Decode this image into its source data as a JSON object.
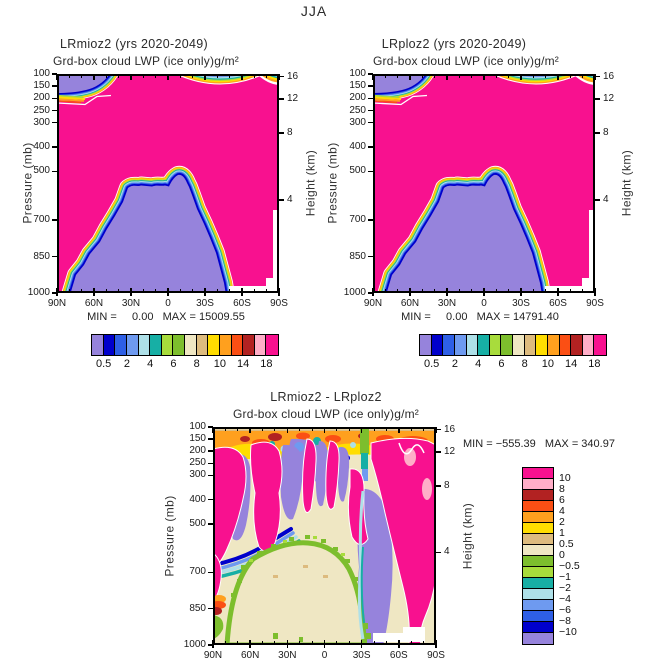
{
  "page_title": "JJA",
  "colors": {
    "background": "#ffffff",
    "frame": "#000000",
    "field_high": "#F8118F",
    "field_low": "#9683DC",
    "missing": "#FFFFFF"
  },
  "axes": {
    "pressure_label": "Pressure (mb)",
    "height_label": "Height (km)",
    "pressure_ticks": [
      "100",
      "150",
      "200",
      "250",
      "300",
      "400",
      "500",
      "700",
      "850",
      "1000"
    ],
    "pressure_values": [
      100,
      150,
      200,
      250,
      300,
      400,
      500,
      700,
      850,
      1000
    ],
    "lat_labels": [
      "90N",
      "60N",
      "30N",
      "0",
      "30S",
      "60S",
      "90S"
    ],
    "height_labels": [
      "16",
      "12",
      "8",
      "4"
    ],
    "height_fracs": [
      0.012,
      0.115,
      0.27,
      0.575
    ]
  },
  "panels": [
    {
      "title": "LRmioz2 (yrs 2020-2049)",
      "subtitle": "Grd-box cloud LWP (ice only)",
      "units": "g/m²",
      "stats": "MIN =     0.00   MAX = 15009.55"
    },
    {
      "title": "LRploz2 (yrs 2020-2049)",
      "subtitle": "Grd-box cloud LWP (ice only)",
      "units": "g/m²",
      "stats": "MIN =     0.00   MAX = 14791.40"
    },
    {
      "title": "LRmioz2 - LRploz2",
      "subtitle": "Grd-box cloud LWP (ice only)",
      "units": "g/m²",
      "stats": "MIN = −555.39   MAX = 340.97"
    }
  ],
  "colorbars": {
    "top": {
      "colors": [
        "#9683DC",
        "#0000CC",
        "#2E5FE6",
        "#6E9AF0",
        "#AEE0E8",
        "#17AFA5",
        "#A8DC3C",
        "#7DBE2D",
        "#EFE7C3",
        "#DDBB7E",
        "#FFDD00",
        "#FFA01E",
        "#FB4F14",
        "#B22222",
        "#FFAEC8",
        "#F8118F"
      ],
      "labels": [
        {
          "text": "0.5",
          "i": 1
        },
        {
          "text": "2",
          "i": 3
        },
        {
          "text": "4",
          "i": 5
        },
        {
          "text": "6",
          "i": 7
        },
        {
          "text": "8",
          "i": 9
        },
        {
          "text": "10",
          "i": 11
        },
        {
          "text": "14",
          "i": 13
        },
        {
          "text": "18",
          "i": 15
        }
      ]
    },
    "diff": {
      "colors": [
        "#F8118F",
        "#FFAEC8",
        "#B22222",
        "#FB4F14",
        "#FFA01E",
        "#FFDD00",
        "#DDBB7E",
        "#EFE7C3",
        "#7DBE2D",
        "#A8DC3C",
        "#17AFA5",
        "#AEE0E8",
        "#6E9AF0",
        "#2E5FE6",
        "#0000CC",
        "#9683DC"
      ],
      "labels": [
        {
          "text": "10",
          "i": 1
        },
        {
          "text": "8",
          "i": 2
        },
        {
          "text": "6",
          "i": 3
        },
        {
          "text": "4",
          "i": 4
        },
        {
          "text": "2",
          "i": 5
        },
        {
          "text": "1",
          "i": 6
        },
        {
          "text": "0.5",
          "i": 7
        },
        {
          "text": "0",
          "i": 8
        },
        {
          "text": "−0.5",
          "i": 9
        },
        {
          "text": "−1",
          "i": 10
        },
        {
          "text": "−2",
          "i": 11
        },
        {
          "text": "−4",
          "i": 12
        },
        {
          "text": "−6",
          "i": 13
        },
        {
          "text": "−8",
          "i": 14
        },
        {
          "text": "−10",
          "i": 15
        }
      ]
    }
  },
  "chart_data": [
    {
      "type": "filled_contour",
      "panel": "top-left",
      "season": "JJA",
      "title": "LRmioz2 (yrs 2020-2049)",
      "variable": "Grd-box cloud LWP (ice only)",
      "units": "g/m²",
      "x_axis": {
        "label": "latitude",
        "ticks": [
          "90N",
          "60N",
          "30N",
          "0",
          "30S",
          "60S",
          "90S"
        ],
        "range": [
          "90N",
          "90S"
        ]
      },
      "y_axis_left": {
        "label": "Pressure (mb)",
        "ticks": [
          100,
          150,
          200,
          250,
          300,
          400,
          500,
          700,
          850,
          1000
        ],
        "range": [
          100,
          1000
        ],
        "scale": "linear"
      },
      "y_axis_right": {
        "label": "Height (km)",
        "ticks": [
          16,
          12,
          8,
          4
        ]
      },
      "contour_levels": [
        0.5,
        1,
        2,
        3,
        4,
        5,
        6,
        7,
        8,
        9,
        10,
        12,
        14,
        16,
        18
      ],
      "labeled_levels": [
        0.5,
        2,
        4,
        6,
        8,
        10,
        14,
        18
      ],
      "min": 0.0,
      "max": 15009.55,
      "palette_ascending": [
        "#9683DC",
        "#0000CC",
        "#2E5FE6",
        "#6E9AF0",
        "#AEE0E8",
        "#17AFA5",
        "#A8DC3C",
        "#7DBE2D",
        "#EFE7C3",
        "#DDBB7E",
        "#FFDD00",
        "#FFA01E",
        "#FB4F14",
        "#B22222",
        "#FFAEC8",
        "#F8118F"
      ],
      "features": [
        "field dominated by values >18 (magenta) through most of the section",
        "low-value region (<0.5, purple) below ~500 mb between ~35N and ~30S with rainbow contour fringe",
        "low-value purple patch at 100-170 mb near 90N-55N with contour fringe",
        "shallow contour dip at ~100-120 mb between ~0 and 45S",
        "missing/white data column near 90S below ~550 mb"
      ]
    },
    {
      "type": "filled_contour",
      "panel": "top-right",
      "season": "JJA",
      "title": "LRploz2 (yrs 2020-2049)",
      "variable": "Grd-box cloud LWP (ice only)",
      "units": "g/m²",
      "x_axis": {
        "label": "latitude",
        "ticks": [
          "90N",
          "60N",
          "30N",
          "0",
          "30S",
          "60S",
          "90S"
        ],
        "range": [
          "90N",
          "90S"
        ]
      },
      "y_axis_left": {
        "label": "Pressure (mb)",
        "ticks": [
          100,
          150,
          200,
          250,
          300,
          400,
          500,
          700,
          850,
          1000
        ],
        "range": [
          100,
          1000
        ],
        "scale": "linear"
      },
      "y_axis_right": {
        "label": "Height (km)",
        "ticks": [
          16,
          12,
          8,
          4
        ]
      },
      "contour_levels": [
        0.5,
        1,
        2,
        3,
        4,
        5,
        6,
        7,
        8,
        9,
        10,
        12,
        14,
        16,
        18
      ],
      "labeled_levels": [
        0.5,
        2,
        4,
        6,
        8,
        10,
        14,
        18
      ],
      "min": 0.0,
      "max": 14791.4,
      "palette_ascending": [
        "#9683DC",
        "#0000CC",
        "#2E5FE6",
        "#6E9AF0",
        "#AEE0E8",
        "#17AFA5",
        "#A8DC3C",
        "#7DBE2D",
        "#EFE7C3",
        "#DDBB7E",
        "#FFDD00",
        "#FFA01E",
        "#FB4F14",
        "#B22222",
        "#FFAEC8",
        "#F8118F"
      ],
      "features": [
        "visually nearly identical to LRmioz2 panel",
        "same purple low-value dome below 500 mb and polar-top purple patch",
        "missing/white data column near 90S below ~550 mb"
      ]
    },
    {
      "type": "filled_contour",
      "panel": "bottom-difference",
      "season": "JJA",
      "title": "LRmioz2 - LRploz2",
      "variable": "Grd-box cloud LWP (ice only)",
      "units": "g/m²",
      "x_axis": {
        "label": "latitude",
        "ticks": [
          "90N",
          "60N",
          "30N",
          "0",
          "30S",
          "60S",
          "90S"
        ],
        "range": [
          "90N",
          "90S"
        ]
      },
      "y_axis_left": {
        "label": "Pressure (mb)",
        "ticks": [
          100,
          150,
          200,
          250,
          300,
          400,
          500,
          700,
          850,
          1000
        ],
        "range": [
          100,
          1000
        ],
        "scale": "linear"
      },
      "y_axis_right": {
        "label": "Height (km)",
        "ticks": [
          16,
          12,
          8,
          4
        ]
      },
      "contour_levels": [
        -10,
        -8,
        -6,
        -4,
        -2,
        -1,
        -0.5,
        0,
        0.5,
        1,
        2,
        4,
        6,
        8,
        10
      ],
      "min": -555.39,
      "max": 340.97,
      "palette_descending_as_shown": [
        "#F8118F",
        "#FFAEC8",
        "#B22222",
        "#FB4F14",
        "#FFA01E",
        "#FFDD00",
        "#DDBB7E",
        "#EFE7C3",
        "#7DBE2D",
        "#A8DC3C",
        "#17AFA5",
        "#AEE0E8",
        "#6E9AF0",
        "#2E5FE6",
        "#0000CC",
        "#9683DC"
      ],
      "features": [
        "noisy alternating positive (magenta, >10) and negative (purple, <-10) columns between 100 and 500 mb",
        "orange/yellow/red positive band near 100-200 mb across most latitudes",
        "near-zero (beige) dome below ~600 mb between ~60N and ~20S with green (-0.5..0) speckled edge",
        "large positive magenta region 30S-90S through mid-troposphere",
        "missing/white strip near bottom right around 60S-90S at ~1000 mb"
      ]
    }
  ]
}
